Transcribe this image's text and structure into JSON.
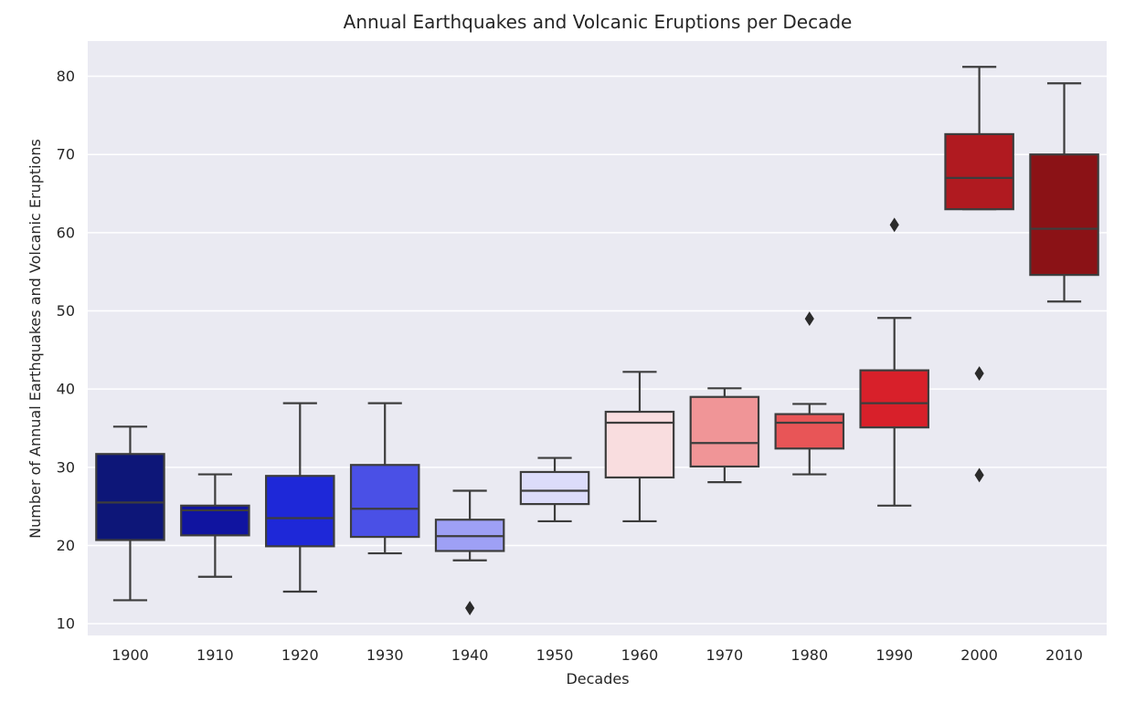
{
  "chart_data": {
    "type": "box",
    "title": "Annual Earthquakes and Volcanic Eruptions per Decade",
    "xlabel": "Decades",
    "ylabel": "Number of Annual Earthquakes and Volcanic Eruptions",
    "ylim": [
      8.5,
      84.5
    ],
    "yticks": [
      10,
      20,
      30,
      40,
      50,
      60,
      70,
      80
    ],
    "grid": "horizontal",
    "background_color": "#EAEAF2",
    "categories": [
      "1900",
      "1910",
      "1920",
      "1930",
      "1940",
      "1950",
      "1960",
      "1970",
      "1980",
      "1990",
      "2000",
      "2010"
    ],
    "boxes": [
      {
        "category": "1900",
        "whisker_low": 13,
        "q1": 20.7,
        "median": 25.5,
        "q3": 31.7,
        "whisker_high": 35.2,
        "outliers": [],
        "color": "#0D1678"
      },
      {
        "category": "1910",
        "whisker_low": 16,
        "q1": 21.3,
        "median": 24.5,
        "q3": 25.1,
        "whisker_high": 29.1,
        "outliers": [],
        "color": "#1014A0"
      },
      {
        "category": "1920",
        "whisker_low": 14.1,
        "q1": 19.9,
        "median": 23.5,
        "q3": 28.9,
        "whisker_high": 38.2,
        "outliers": [],
        "color": "#1E28D8"
      },
      {
        "category": "1930",
        "whisker_low": 19,
        "q1": 21.1,
        "median": 24.7,
        "q3": 30.3,
        "whisker_high": 38.2,
        "outliers": [],
        "color": "#4A50E6"
      },
      {
        "category": "1940",
        "whisker_low": 18.1,
        "q1": 19.3,
        "median": 21.2,
        "q3": 23.3,
        "whisker_high": 27,
        "outliers": [
          12
        ],
        "color": "#9EA0F5"
      },
      {
        "category": "1950",
        "whisker_low": 23.1,
        "q1": 25.3,
        "median": 27,
        "q3": 29.4,
        "whisker_high": 31.2,
        "outliers": [],
        "color": "#DCDCFA"
      },
      {
        "category": "1960",
        "whisker_low": 23.1,
        "q1": 28.7,
        "median": 35.7,
        "q3": 37.1,
        "whisker_high": 42.2,
        "outliers": [],
        "color": "#F9DDDF"
      },
      {
        "category": "1970",
        "whisker_low": 28.1,
        "q1": 30.1,
        "median": 33.1,
        "q3": 39,
        "whisker_high": 40.1,
        "outliers": [],
        "color": "#F09597"
      },
      {
        "category": "1980",
        "whisker_low": 29.1,
        "q1": 32.4,
        "median": 35.7,
        "q3": 36.8,
        "whisker_high": 38.1,
        "outliers": [
          49
        ],
        "color": "#E85557"
      },
      {
        "category": "1990",
        "whisker_low": 25.1,
        "q1": 35.1,
        "median": 38.2,
        "q3": 42.4,
        "whisker_high": 49.1,
        "outliers": [
          61
        ],
        "color": "#D8202A"
      },
      {
        "category": "2000",
        "whisker_low": 63,
        "q1": 63,
        "median": 67,
        "q3": 72.6,
        "whisker_high": 81.2,
        "outliers": [
          42,
          29
        ],
        "color": "#B01A20"
      },
      {
        "category": "2010",
        "whisker_low": 51.2,
        "q1": 54.6,
        "median": 60.5,
        "q3": 70,
        "whisker_high": 79.1,
        "outliers": [],
        "color": "#8B1216"
      }
    ]
  }
}
